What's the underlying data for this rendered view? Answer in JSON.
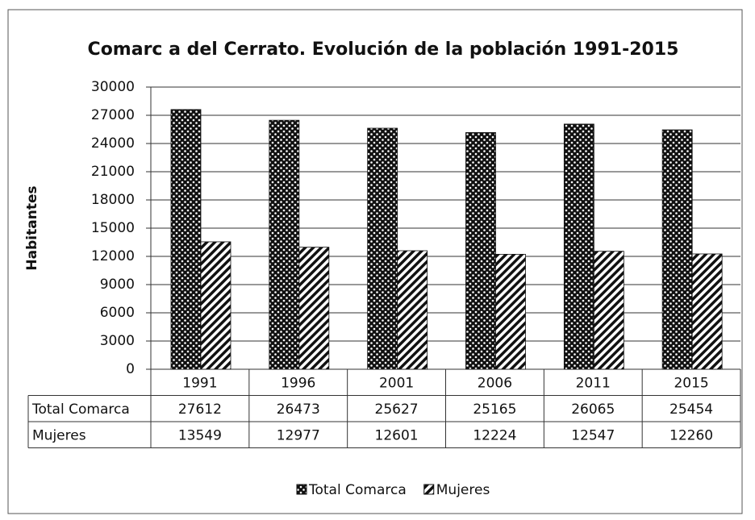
{
  "chart_data": {
    "type": "bar",
    "title": "Comarc a del Cerrato. Evolución de la población 1991-2015",
    "y_label": "Habitantes",
    "categories": [
      "1991",
      "1996",
      "2001",
      "2006",
      "2011",
      "2015"
    ],
    "series": [
      {
        "name": "Total Comarca",
        "color": "#111111",
        "pattern": "dots",
        "values": [
          27612,
          26473,
          25627,
          25165,
          26065,
          25454
        ]
      },
      {
        "name": "Mujeres",
        "color": "#111111",
        "pattern": "hatch",
        "values": [
          13549,
          12977,
          12601,
          12224,
          12547,
          12260
        ]
      }
    ],
    "ylim": [
      0,
      30000
    ],
    "yticks": [
      0,
      3000,
      6000,
      9000,
      12000,
      15000,
      18000,
      21000,
      24000,
      27000,
      30000
    ],
    "grid": true,
    "data_table": true,
    "legend": "bottom"
  }
}
